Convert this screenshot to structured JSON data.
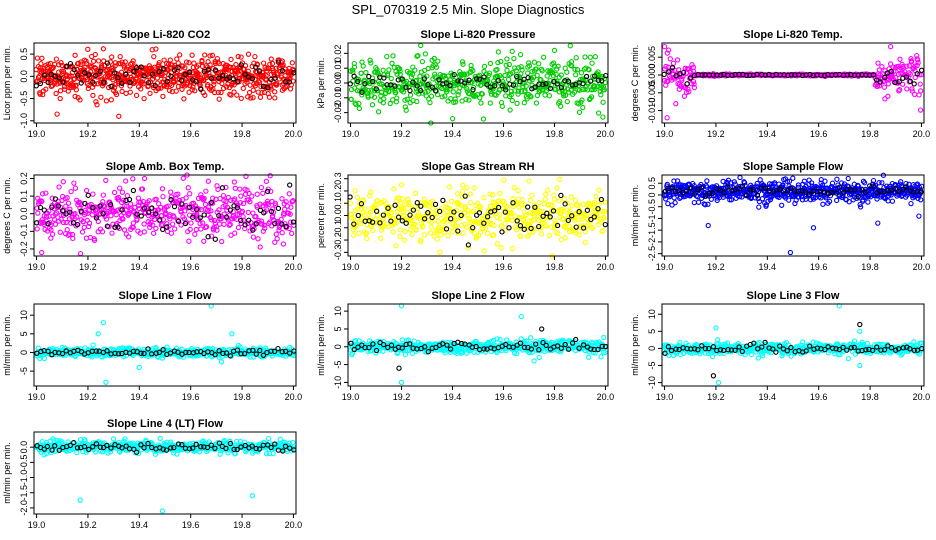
{
  "figure": {
    "title": "SPL_070319  2.5 Min. Slope Diagnostics"
  },
  "chart_data": [
    {
      "type": "scatter",
      "title": "Slope Li-820 CO2",
      "xlabel": "",
      "ylabel": "Licor ppm per min.",
      "xlim": [
        18.99,
        20.01
      ],
      "ylim": [
        -1.05,
        0.75
      ],
      "xticks": [
        19.0,
        19.2,
        19.4,
        19.6,
        19.8,
        20.0
      ],
      "yticks": [
        -1.0,
        -0.5,
        0.0,
        0.5
      ],
      "yticklabels": [
        "-1.0",
        "-0.5",
        "0.0",
        "0.5"
      ],
      "series": [
        {
          "color": "#ff0000",
          "n": 700,
          "sd": 0.22,
          "outliers": [
            [
              19.32,
              -0.9
            ],
            [
              19.08,
              -0.85
            ],
            [
              19.45,
              0.6
            ],
            [
              19.26,
              0.62
            ]
          ]
        },
        {
          "color": "#000000",
          "n": 70,
          "sd": 0.15,
          "outliers": []
        }
      ]
    },
    {
      "type": "scatter",
      "title": "Slope Li-820 Pressure",
      "xlabel": "",
      "ylabel": "kPa per min.",
      "xlim": [
        18.99,
        20.01
      ],
      "ylim": [
        -0.027,
        0.027
      ],
      "xticks": [
        19.0,
        19.2,
        19.4,
        19.6,
        19.8,
        20.0
      ],
      "yticks": [
        -0.02,
        -0.01,
        0.0,
        0.01,
        0.02
      ],
      "yticklabels": [
        "-0.02",
        "-0.01",
        "0.00",
        "0.01",
        "0.02"
      ],
      "series": [
        {
          "color": "#00cc00",
          "n": 550,
          "sd": 0.008,
          "outliers": [
            [
              19.4,
              -0.024
            ],
            [
              19.8,
              0.022
            ],
            [
              19.99,
              -0.023
            ],
            [
              19.58,
              0.021
            ]
          ]
        },
        {
          "color": "#000000",
          "n": 70,
          "sd": 0.003,
          "outliers": []
        }
      ]
    },
    {
      "type": "scatter",
      "title": "Slope Li-820 Temp.",
      "xlabel": "",
      "ylabel": "degrees C per min.",
      "xlim": [
        18.99,
        20.01
      ],
      "ylim": [
        -0.0135,
        0.009
      ],
      "xticks": [
        19.0,
        19.2,
        19.4,
        19.6,
        19.8,
        20.0
      ],
      "yticks": [
        -0.01,
        -0.005,
        0.0,
        0.005
      ],
      "yticklabels": [
        "-0.010",
        "-0.005",
        "0.000",
        "0.005"
      ],
      "series": [
        {
          "color": "#ff00ff",
          "n": 500,
          "sd": 0.003,
          "outliers": [
            [
              19.01,
              -0.012
            ],
            [
              19.0,
              0.008
            ],
            [
              19.88,
              0.008
            ]
          ]
        },
        {
          "color": "#000000",
          "n": 70,
          "sd": 0.0015,
          "outliers": []
        }
      ]
    },
    {
      "type": "scatter",
      "title": "Slope Amb. Box Temp.",
      "xlabel": "",
      "ylabel": "degrees C per min.",
      "xlim": [
        18.99,
        20.01
      ],
      "ylim": [
        -0.24,
        0.22
      ],
      "xticks": [
        19.0,
        19.2,
        19.4,
        19.6,
        19.8,
        20.0
      ],
      "yticks": [
        -0.2,
        -0.1,
        0.0,
        0.1,
        0.2
      ],
      "yticklabels": [
        "-0.2",
        "-0.1",
        "0.0",
        "0.1",
        "0.2"
      ],
      "series": [
        {
          "color": "#ff00ff",
          "n": 520,
          "sd": 0.075,
          "outliers": [
            [
              19.02,
              -0.22
            ],
            [
              19.42,
              0.2
            ],
            [
              19.77,
              0.18
            ]
          ]
        },
        {
          "color": "#000000",
          "n": 70,
          "sd": 0.06,
          "outliers": []
        }
      ]
    },
    {
      "type": "scatter",
      "title": "Slope Gas Stream RH",
      "xlabel": "",
      "ylabel": "percent per min.",
      "xlim": [
        18.99,
        20.01
      ],
      "ylim": [
        -0.33,
        0.33
      ],
      "xticks": [
        19.0,
        19.2,
        19.4,
        19.6,
        19.8,
        20.0
      ],
      "yticks": [
        -0.3,
        -0.2,
        -0.1,
        0.0,
        0.1,
        0.2,
        0.3
      ],
      "yticklabels": [
        "-0.3",
        "-0.2",
        "-0.1",
        "0.0",
        "0.1",
        "0.2",
        "0.3"
      ],
      "series": [
        {
          "color": "#ffff00",
          "n": 520,
          "sd": 0.1,
          "outliers": [
            [
              19.2,
              0.25
            ],
            [
              19.7,
              0.28
            ],
            [
              19.35,
              -0.3
            ]
          ]
        },
        {
          "color": "#000000",
          "n": 70,
          "sd": 0.08,
          "outliers": []
        }
      ]
    },
    {
      "type": "scatter",
      "title": "Slope Sample Flow",
      "xlabel": "",
      "ylabel": "ml/min per min.",
      "xlim": [
        18.99,
        20.01
      ],
      "ylim": [
        -2.6,
        0.85
      ],
      "xticks": [
        19.0,
        19.2,
        19.4,
        19.6,
        19.8,
        20.0
      ],
      "yticks": [
        -2.5,
        -2.0,
        -1.5,
        -1.0,
        -0.5,
        0.0,
        0.5
      ],
      "yticklabels": [
        "-2.5",
        "-2",
        "-1.5",
        "-1",
        "-0.5",
        "0",
        "0.5"
      ],
      "series": [
        {
          "color": "#0000ff",
          "n": 620,
          "sd": 0.22,
          "outliers": [
            [
              19.17,
              -1.3
            ],
            [
              19.49,
              -2.45
            ],
            [
              19.58,
              -1.4
            ],
            [
              19.83,
              -1.2
            ],
            [
              19.99,
              -0.9
            ],
            [
              19.61,
              0.65
            ]
          ]
        },
        {
          "color": "#000000",
          "n": 70,
          "sd": 0.12,
          "outliers": []
        }
      ]
    },
    {
      "type": "scatter",
      "title": "Slope Line 1 Flow",
      "xlabel": "",
      "ylabel": "ml/min per min.",
      "xlim": [
        18.99,
        20.01
      ],
      "ylim": [
        -9,
        13
      ],
      "xticks": [
        19.0,
        19.2,
        19.4,
        19.6,
        19.8,
        20.0
      ],
      "yticks": [
        -5,
        0,
        5,
        10
      ],
      "yticklabels": [
        "-5",
        "0",
        "5",
        "10"
      ],
      "series": [
        {
          "color": "#00ffff",
          "n": 500,
          "sd": 0.6,
          "outliers": [
            [
              19.26,
              8
            ],
            [
              19.24,
              5
            ],
            [
              19.27,
              -8
            ],
            [
              19.4,
              -4
            ],
            [
              19.68,
              12.5
            ],
            [
              19.76,
              5
            ],
            [
              19.72,
              -2.5
            ],
            [
              19.22,
              2
            ]
          ]
        },
        {
          "color": "#000000",
          "n": 70,
          "sd": 0.4,
          "outliers": []
        }
      ]
    },
    {
      "type": "scatter",
      "title": "Slope Line 2 Flow",
      "xlabel": "",
      "ylabel": "ml/min per min.",
      "xlim": [
        18.99,
        20.01
      ],
      "ylim": [
        -11,
        12
      ],
      "xticks": [
        19.0,
        19.2,
        19.4,
        19.6,
        19.8,
        20.0
      ],
      "yticks": [
        -10,
        -5,
        0,
        5,
        10
      ],
      "yticklabels": [
        "-10",
        "-5",
        "0",
        "5",
        "10"
      ],
      "series": [
        {
          "color": "#00ffff",
          "n": 500,
          "sd": 0.9,
          "outliers": [
            [
              19.2,
              11.5
            ],
            [
              19.2,
              -10
            ],
            [
              19.67,
              8.5
            ],
            [
              19.72,
              -4
            ],
            [
              19.74,
              -3
            ]
          ]
        },
        {
          "color": "#000000",
          "n": 70,
          "sd": 0.7,
          "outliers": [
            [
              19.19,
              -6
            ],
            [
              19.75,
              5
            ]
          ]
        }
      ]
    },
    {
      "type": "scatter",
      "title": "Slope Line 3 Flow",
      "xlabel": "",
      "ylabel": "ml/min per min.",
      "xlim": [
        18.99,
        20.01
      ],
      "ylim": [
        -11,
        13
      ],
      "xticks": [
        19.0,
        19.2,
        19.4,
        19.6,
        19.8,
        20.0
      ],
      "yticks": [
        -10,
        -5,
        0,
        5,
        10
      ],
      "yticklabels": [
        "-10",
        "-5",
        "0",
        "5",
        "10"
      ],
      "series": [
        {
          "color": "#00ffff",
          "n": 500,
          "sd": 0.8,
          "outliers": [
            [
              19.2,
              6
            ],
            [
              19.21,
              -10
            ],
            [
              19.68,
              12.5
            ],
            [
              19.76,
              5
            ],
            [
              19.76,
              -5
            ]
          ]
        },
        {
          "color": "#000000",
          "n": 70,
          "sd": 0.6,
          "outliers": [
            [
              19.19,
              -8
            ],
            [
              19.76,
              7
            ]
          ]
        }
      ]
    },
    {
      "type": "scatter",
      "title": "Slope Line 4 (LT) Flow",
      "xlabel": "",
      "ylabel": "ml/min per min.",
      "xlim": [
        18.99,
        20.01
      ],
      "ylim": [
        -2.2,
        0.5
      ],
      "xticks": [
        19.0,
        19.2,
        19.4,
        19.6,
        19.8,
        20.0
      ],
      "yticks": [
        -2.0,
        -1.5,
        -1.0,
        -0.5,
        0.0
      ],
      "yticklabels": [
        "-2.0",
        "-1.5",
        "-1.0",
        "-0.5",
        "0.0"
      ],
      "series": [
        {
          "color": "#00ffff",
          "n": 500,
          "sd": 0.1,
          "outliers": [
            [
              19.17,
              -1.75
            ],
            [
              19.49,
              -2.1
            ],
            [
              19.84,
              -1.6
            ]
          ]
        },
        {
          "color": "#000000",
          "n": 70,
          "sd": 0.07,
          "outliers": []
        }
      ]
    }
  ]
}
